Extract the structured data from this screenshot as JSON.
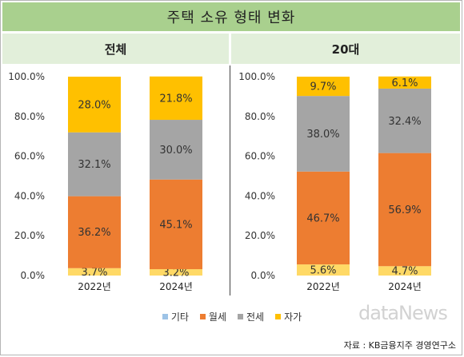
{
  "title": "주택 소유 형태 변화",
  "legend": [
    {
      "name": "기타",
      "color": "#9dc3e6"
    },
    {
      "name": "월세",
      "color": "#ed7d31"
    },
    {
      "name": "전세",
      "color": "#a5a5a5"
    },
    {
      "name": "자가",
      "color": "#ffc000"
    }
  ],
  "watermark": "dataNews",
  "source": "자료 : KB금융지주 경영연구소",
  "chart_data": [
    {
      "type": "bar",
      "stacked": true,
      "title": "전체",
      "categories": [
        "2022년",
        "2024년"
      ],
      "yticks": [
        "0.0%",
        "20.0%",
        "40.0%",
        "60.0%",
        "80.0%",
        "100.0%"
      ],
      "ylim": [
        0,
        100
      ],
      "series": [
        {
          "name": "기타",
          "values": [
            3.7,
            3.2
          ],
          "labels": [
            "3.7%",
            "3.2%"
          ],
          "color": "#ffd966"
        },
        {
          "name": "월세",
          "values": [
            36.2,
            45.1
          ],
          "labels": [
            "36.2%",
            "45.1%"
          ],
          "color": "#ed7d31"
        },
        {
          "name": "전세",
          "values": [
            32.1,
            30.0
          ],
          "labels": [
            "32.1%",
            "30.0%"
          ],
          "color": "#a5a5a5"
        },
        {
          "name": "자가",
          "values": [
            28.0,
            21.8
          ],
          "labels": [
            "28.0%",
            "21.8%"
          ],
          "color": "#ffc000"
        }
      ]
    },
    {
      "type": "bar",
      "stacked": true,
      "title": "20대",
      "categories": [
        "2022년",
        "2024년"
      ],
      "yticks": [
        "0.0%",
        "20.0%",
        "40.0%",
        "60.0%",
        "80.0%",
        "100.0%"
      ],
      "ylim": [
        0,
        100
      ],
      "series": [
        {
          "name": "기타",
          "values": [
            5.6,
            4.7
          ],
          "labels": [
            "5.6%",
            "4.7%"
          ],
          "color": "#ffd966"
        },
        {
          "name": "월세",
          "values": [
            46.7,
            56.9
          ],
          "labels": [
            "46.7%",
            "56.9%"
          ],
          "color": "#ed7d31"
        },
        {
          "name": "전세",
          "values": [
            38.0,
            32.4
          ],
          "labels": [
            "38.0%",
            "32.4%"
          ],
          "color": "#a5a5a5"
        },
        {
          "name": "자가",
          "values": [
            9.7,
            6.1
          ],
          "labels": [
            "9.7%",
            "6.1%"
          ],
          "color": "#ffc000"
        }
      ]
    }
  ]
}
